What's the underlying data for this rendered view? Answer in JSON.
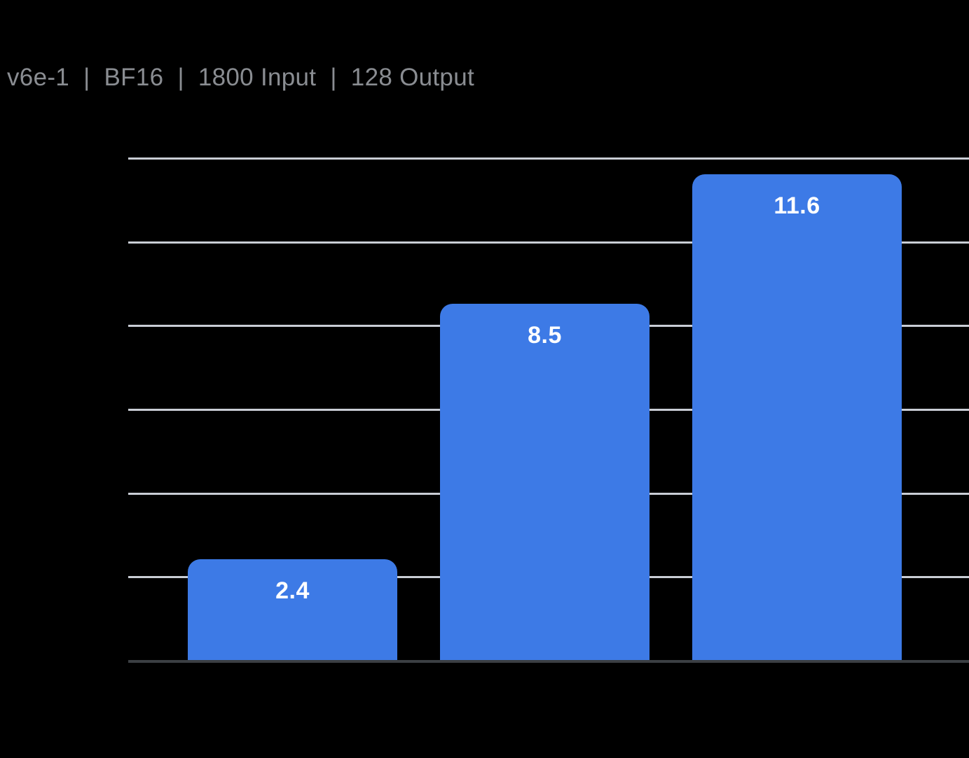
{
  "page": {
    "background_color": "#000000"
  },
  "header": {
    "title": "v6e-1  |  BF16  |  1800 Input  |  128 Output",
    "title_color": "#8A8D92"
  },
  "chart_data": {
    "type": "bar",
    "title": "v6e-1  |  BF16  |  1800 Input  |  128 Output",
    "categories": [
      "",
      "",
      ""
    ],
    "values": [
      2.4,
      8.5,
      11.6
    ],
    "data_labels": [
      "2.4",
      "8.5",
      "11.6"
    ],
    "xlabel": "",
    "ylabel": "",
    "ylim": [
      0,
      12
    ],
    "gridline_step": 2,
    "grid": true,
    "legend": false,
    "axis_tick_labels_visible": false,
    "colors": {
      "bar": "#3D7AE6",
      "data_label": "#FFFFFF",
      "gridline": "#C9CDD5",
      "axis_line": "#3B3F43",
      "title": "#8A8D92",
      "background": "#000000"
    }
  }
}
